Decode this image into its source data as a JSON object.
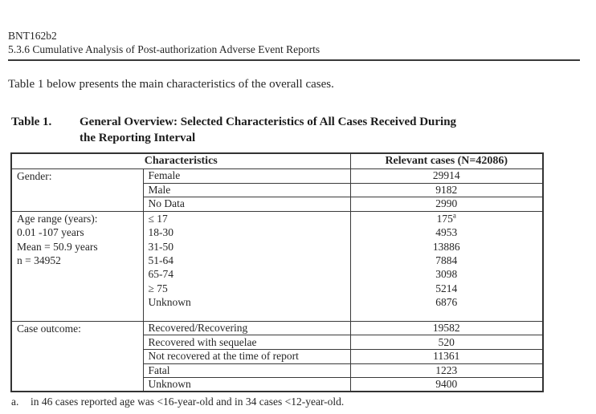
{
  "colors": {
    "page_background": "#ffffff",
    "text": "#262626",
    "table_border": "#3a3a3a"
  },
  "header": {
    "product_code": "BNT162b2",
    "section_heading": "5.3.6 Cumulative Analysis of Post-authorization Adverse Event Reports"
  },
  "intro": {
    "text": "Table 1 below presents the main characteristics of the overall cases."
  },
  "table_title": {
    "label": "Table 1.",
    "line1": "General Overview: Selected Characteristics of All Cases Received During",
    "line2": "the Reporting Interval"
  },
  "table": {
    "col_headers": [
      "Characteristics",
      "Relevant cases (N=42086)"
    ],
    "sections": [
      {
        "bordered_rows": true,
        "label_lines": [
          "Gender:"
        ],
        "rows": [
          {
            "characteristic": "Female",
            "value": "29914"
          },
          {
            "characteristic": "Male",
            "value": "9182"
          },
          {
            "characteristic": "No Data",
            "value": "2990"
          }
        ]
      },
      {
        "bordered_rows": false,
        "label_lines": [
          "Age range (years):",
          "0.01 -107 years",
          "Mean = 50.9 years",
          "n = 34952"
        ],
        "rows": [
          {
            "characteristic": "≤ 17",
            "value": "175",
            "value_superscript": "a"
          },
          {
            "characteristic": "18-30",
            "value": "4953"
          },
          {
            "characteristic": "31-50",
            "value": "13886"
          },
          {
            "characteristic": "51-64",
            "value": "7884"
          },
          {
            "characteristic": "65-74",
            "value": "3098"
          },
          {
            "characteristic": "≥ 75",
            "value": "5214"
          },
          {
            "characteristic": "Unknown",
            "value": "6876"
          }
        ]
      },
      {
        "bordered_rows": true,
        "label_lines": [
          "Case outcome:"
        ],
        "rows": [
          {
            "characteristic": "Recovered/Recovering",
            "value": "19582"
          },
          {
            "characteristic": "Recovered with sequelae",
            "value": "520"
          },
          {
            "characteristic": "Not recovered at the time of report",
            "value": "11361"
          },
          {
            "characteristic": "Fatal",
            "value": "1223"
          },
          {
            "characteristic": "Unknown",
            "value": "9400"
          }
        ]
      }
    ]
  },
  "footnote": {
    "marker": "a.",
    "text": "in 46 cases reported age was <16-year-old and in 34 cases <12-year-old."
  }
}
